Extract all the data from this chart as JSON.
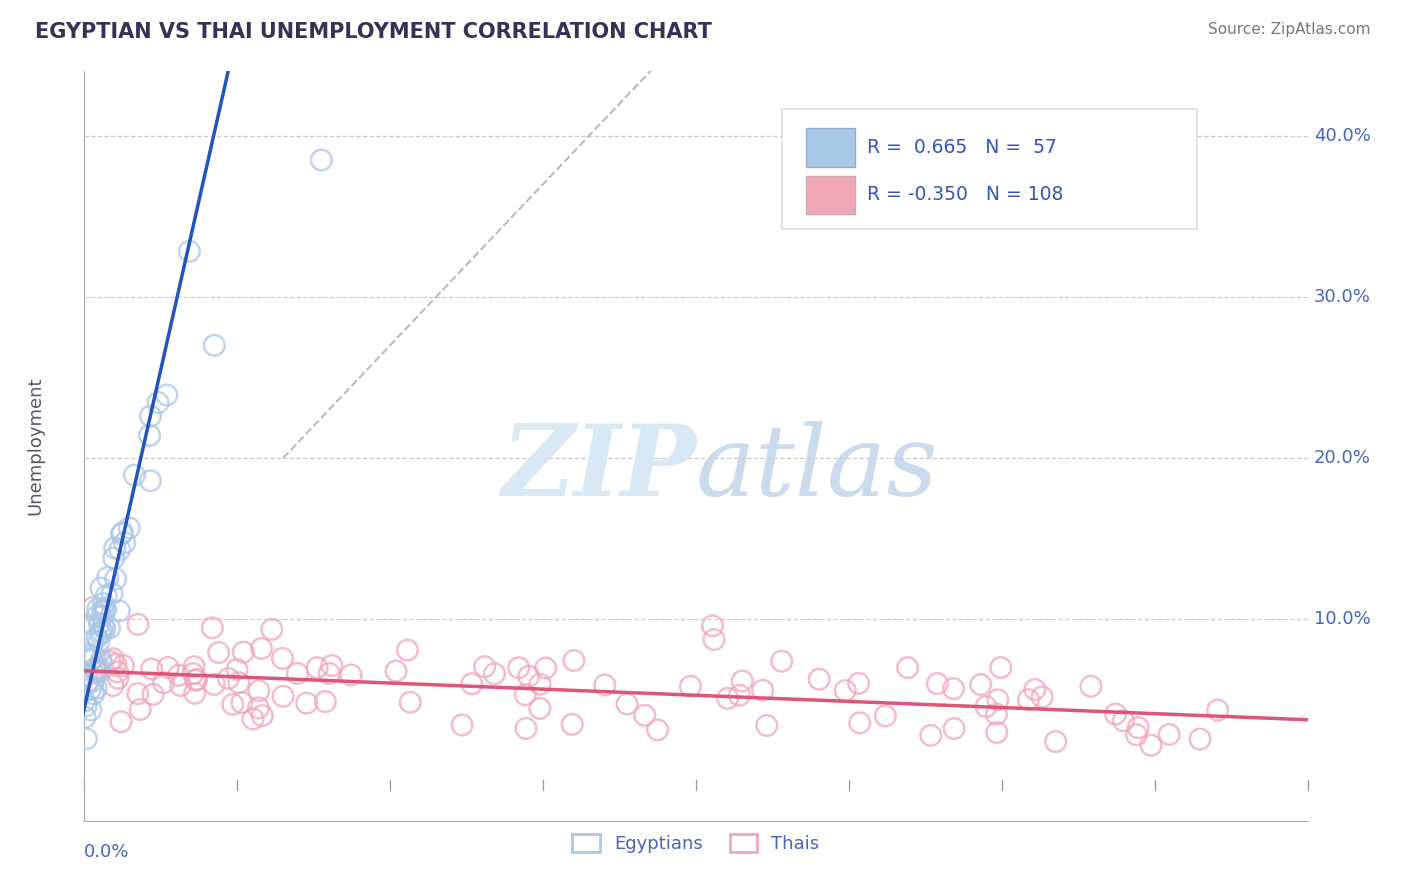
{
  "title": "EGYPTIAN VS THAI UNEMPLOYMENT CORRELATION CHART",
  "source_text": "Source: ZipAtlas.com",
  "ylabel": "Unemployment",
  "xlim": [
    0.0,
    0.8
  ],
  "ylim": [
    -0.025,
    0.44
  ],
  "background_color": "#ffffff",
  "grid_color": "#cccccc",
  "blue_color": "#a8c8e8",
  "pink_color": "#f0a8b8",
  "blue_line_color": "#2255bb",
  "pink_line_color": "#dd5577",
  "title_color": "#333355",
  "axis_label_color": "#4466bb",
  "legend_text_color": "#3355bb",
  "egyptians_N": 57,
  "thais_N": 108,
  "blue_scatter_seed": 7,
  "pink_scatter_seed": 42
}
